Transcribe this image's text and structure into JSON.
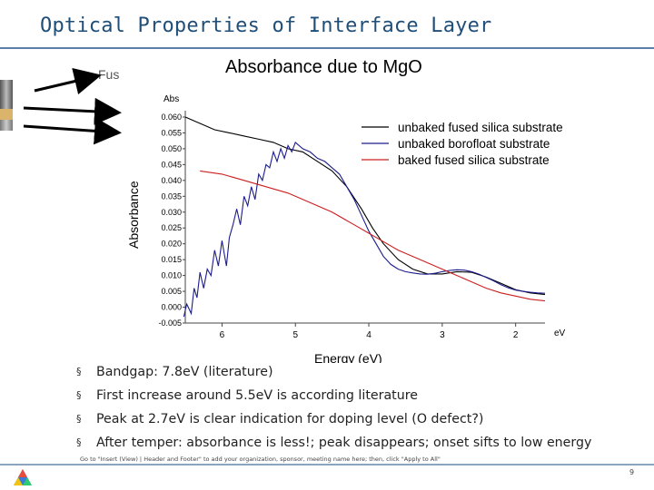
{
  "slide": {
    "title": "Optical Properties of Interface Layer",
    "fused_label": "Fus",
    "bullets": [
      "Bandgap: 7.8eV (literature)",
      "First increase around 5.5eV is according literature",
      "Peak at 2.7eV is clear indication for doping level (O defect?)",
      "After temper: absorbance is less!; peak disappears; onset sifts to low energy"
    ],
    "bullet_marker": "§",
    "footer_note": "Go to \"Insert (View) | Header and Footer\" to add your organization, sponsor, meeting name here; then, click \"Apply to All\"",
    "page_number": "9",
    "colors": {
      "title": "#1f4e79",
      "rule": "#5b7fa8",
      "strip_grey": "#9a9a9a",
      "strip_tan": "#d9b46a"
    }
  },
  "chart_data": {
    "type": "line",
    "title": "Absorbance due to MgO",
    "ylabel": "Absorbance",
    "xlabel": "Energy (eV)",
    "y_axis_unit": "Abs",
    "x_axis_unit": "eV",
    "x_reversed": true,
    "xlim": [
      6.5,
      1.6
    ],
    "ylim": [
      -0.005,
      0.062
    ],
    "x_ticks": [
      6,
      5,
      4,
      3,
      2
    ],
    "x_tick_labels": [
      "6",
      "5",
      "4",
      "3",
      "2"
    ],
    "y_ticks": [
      -0.005,
      0.0,
      0.005,
      0.01,
      0.015,
      0.02,
      0.025,
      0.03,
      0.035,
      0.04,
      0.045,
      0.05,
      0.055,
      0.06
    ],
    "y_tick_labels": [
      "-0.005",
      "0.000",
      "0.005",
      "0.010",
      "0.015",
      "0.020",
      "0.025",
      "0.030",
      "0.035",
      "0.040",
      "0.045",
      "0.050",
      "0.055",
      "0.060"
    ],
    "legend_position": "top-right",
    "grid": false,
    "series": [
      {
        "name": "unbaked fused silica substrate",
        "color": "#000000",
        "x": [
          6.5,
          6.3,
          6.1,
          5.9,
          5.7,
          5.5,
          5.3,
          5.1,
          4.9,
          4.7,
          4.5,
          4.3,
          4.1,
          3.95,
          3.8,
          3.6,
          3.4,
          3.2,
          3.0,
          2.8,
          2.6,
          2.4,
          2.2,
          2.0,
          1.8,
          1.6
        ],
        "y": [
          0.06,
          0.058,
          0.056,
          0.055,
          0.054,
          0.053,
          0.052,
          0.05,
          0.049,
          0.046,
          0.043,
          0.038,
          0.031,
          0.025,
          0.02,
          0.015,
          0.012,
          0.0105,
          0.0105,
          0.0112,
          0.011,
          0.0095,
          0.0075,
          0.0055,
          0.0045,
          0.004
        ]
      },
      {
        "name": "unbaked borofloat substrate",
        "color": "#1c1c8c",
        "x": [
          6.52,
          6.48,
          6.42,
          6.38,
          6.34,
          6.3,
          6.25,
          6.2,
          6.15,
          6.1,
          6.05,
          6.0,
          5.97,
          5.94,
          5.9,
          5.85,
          5.8,
          5.75,
          5.7,
          5.65,
          5.6,
          5.55,
          5.5,
          5.45,
          5.4,
          5.35,
          5.3,
          5.25,
          5.2,
          5.15,
          5.1,
          5.05,
          5.0,
          4.9,
          4.8,
          4.7,
          4.6,
          4.5,
          4.4,
          4.3,
          4.2,
          4.1,
          4.0,
          3.9,
          3.8,
          3.7,
          3.6,
          3.5,
          3.4,
          3.3,
          3.2,
          3.1,
          3.0,
          2.9,
          2.8,
          2.7,
          2.6,
          2.5,
          2.4,
          2.3,
          2.2,
          2.1,
          2.0,
          1.9,
          1.8,
          1.7,
          1.6
        ],
        "y": [
          -0.003,
          0.001,
          -0.002,
          0.006,
          0.003,
          0.011,
          0.006,
          0.012,
          0.01,
          0.018,
          0.013,
          0.021,
          0.017,
          0.013,
          0.022,
          0.026,
          0.031,
          0.026,
          0.035,
          0.032,
          0.038,
          0.034,
          0.042,
          0.04,
          0.045,
          0.044,
          0.049,
          0.046,
          0.05,
          0.047,
          0.051,
          0.049,
          0.052,
          0.05,
          0.049,
          0.047,
          0.046,
          0.044,
          0.042,
          0.038,
          0.034,
          0.029,
          0.024,
          0.02,
          0.016,
          0.0135,
          0.012,
          0.0112,
          0.0108,
          0.0105,
          0.0104,
          0.0107,
          0.0112,
          0.0116,
          0.0118,
          0.0117,
          0.0112,
          0.0104,
          0.0094,
          0.0083,
          0.0071,
          0.0061,
          0.0054,
          0.005,
          0.0047,
          0.0045,
          0.0044
        ]
      },
      {
        "name": "baked fused silica substrate",
        "color": "#cc1f1f",
        "x": [
          6.3,
          6.0,
          5.7,
          5.4,
          5.1,
          4.8,
          4.5,
          4.2,
          3.9,
          3.6,
          3.3,
          3.0,
          2.8,
          2.6,
          2.4,
          2.2,
          2.0,
          1.8,
          1.6
        ],
        "y": [
          0.043,
          0.042,
          0.04,
          0.038,
          0.036,
          0.033,
          0.03,
          0.026,
          0.022,
          0.018,
          0.015,
          0.012,
          0.01,
          0.008,
          0.006,
          0.0045,
          0.0035,
          0.0025,
          0.002
        ]
      }
    ]
  }
}
